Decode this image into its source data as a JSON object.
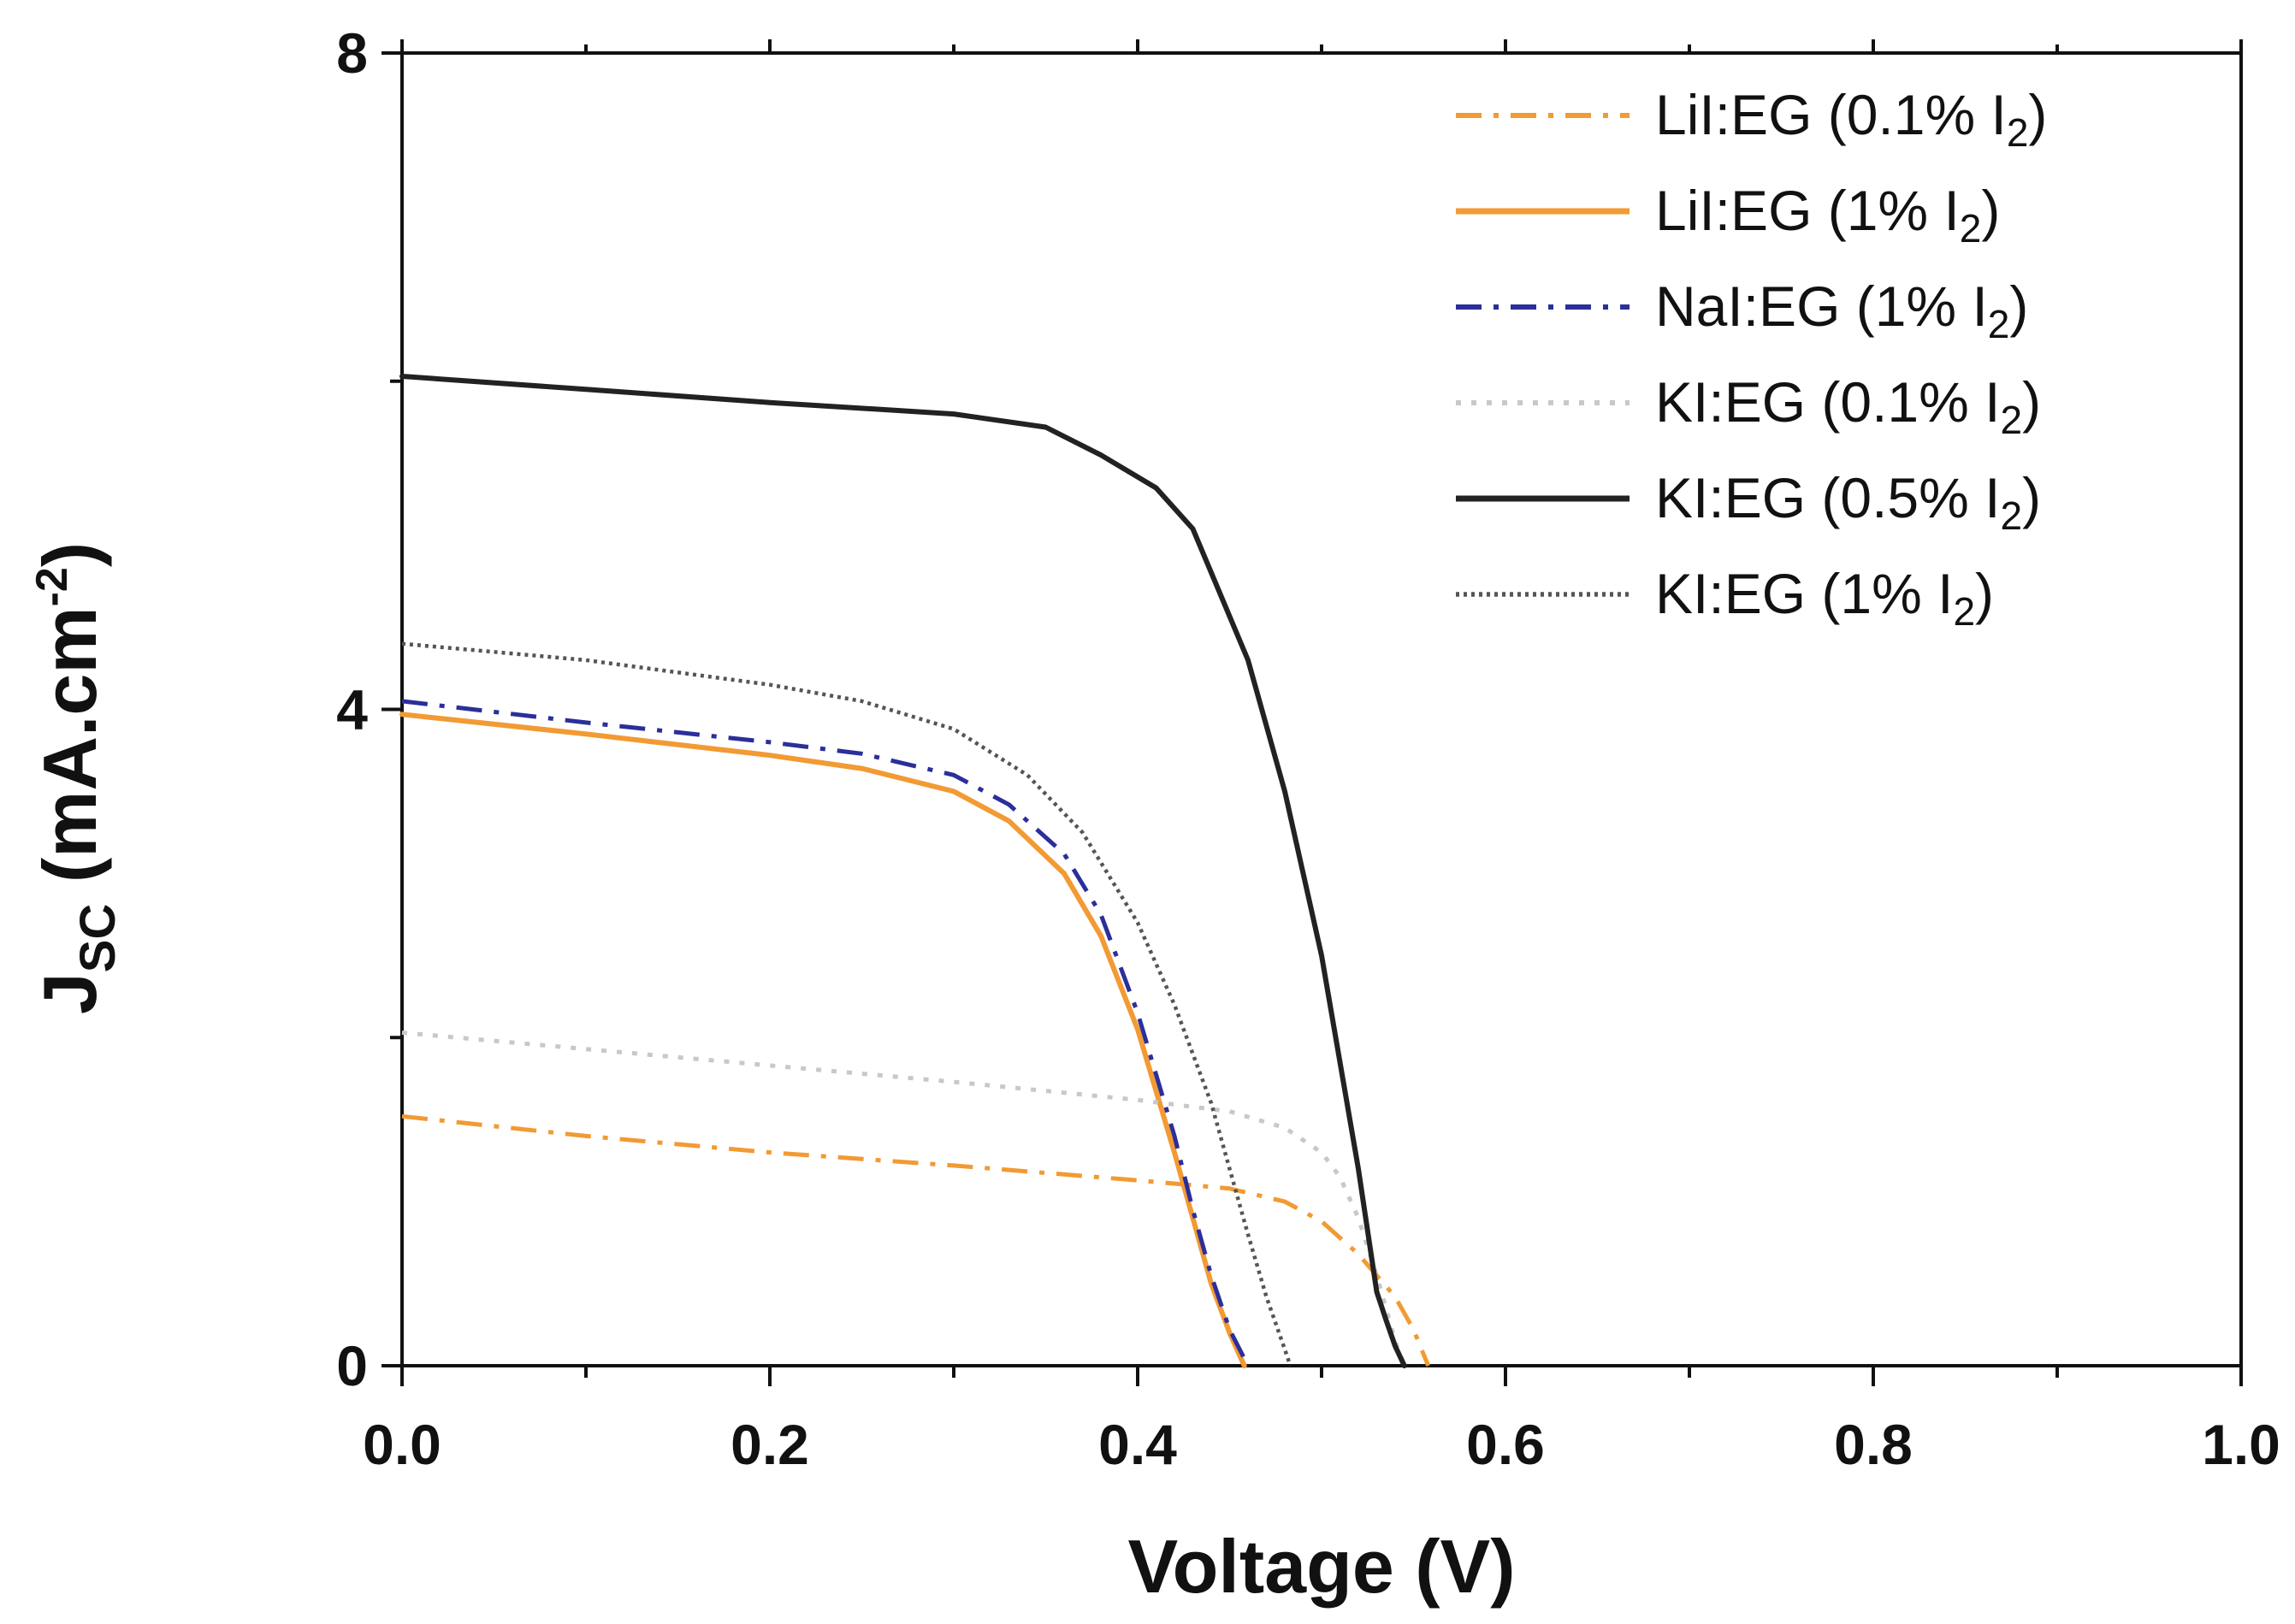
{
  "chart_data": {
    "type": "line",
    "title": "",
    "xlabel": "Voltage (V)",
    "ylabel": {
      "main": "J",
      "sub": "SC",
      "unit_pre": " (mA.cm",
      "unit_sup": "-2",
      "unit_post": ")"
    },
    "xlim": [
      0.0,
      1.0
    ],
    "ylim": [
      0,
      8
    ],
    "x_major_ticks": [
      0.0,
      0.2,
      0.4,
      0.6,
      0.8,
      1.0
    ],
    "x_tick_labels": [
      "0.0",
      "0.2",
      "0.4",
      "0.6",
      "0.8",
      "1.0"
    ],
    "x_minor_ticks": [
      0.1,
      0.3,
      0.5,
      0.7,
      0.9
    ],
    "y_major_ticks": [
      0,
      4,
      8
    ],
    "y_tick_labels": [
      "0",
      "4",
      "8"
    ],
    "y_minor_ticks": [
      2,
      6
    ],
    "grid": false,
    "legend_position": "top-right",
    "series": [
      {
        "name": "LiI:EG (0.1% I2)",
        "label_main": "LiI:EG (0.1% I",
        "label_sub": "2",
        "label_end": ")",
        "color": "#f29a33",
        "style": "dashdot",
        "x": [
          0.0,
          0.1,
          0.2,
          0.3,
          0.4,
          0.45,
          0.48,
          0.5,
          0.52,
          0.53,
          0.54,
          0.55,
          0.558
        ],
        "y": [
          1.52,
          1.4,
          1.3,
          1.22,
          1.13,
          1.08,
          1.0,
          0.88,
          0.68,
          0.55,
          0.42,
          0.22,
          0.0
        ]
      },
      {
        "name": "LiI:EG (1% I2)",
        "label_main": "LiI:EG (1% I",
        "label_sub": "2",
        "label_end": ")",
        "color": "#f29a33",
        "style": "solid",
        "x": [
          0.0,
          0.1,
          0.2,
          0.25,
          0.3,
          0.33,
          0.36,
          0.38,
          0.4,
          0.42,
          0.43,
          0.44,
          0.45,
          0.458
        ],
        "y": [
          3.97,
          3.85,
          3.72,
          3.64,
          3.5,
          3.32,
          3.0,
          2.62,
          2.05,
          1.3,
          0.9,
          0.5,
          0.2,
          0.0
        ]
      },
      {
        "name": "NaI:EG (1% I2)",
        "label_main": "NaI:EG (1% I",
        "label_sub": "2",
        "label_end": ")",
        "color": "#2b2f9a",
        "style": "dashdot",
        "x": [
          0.0,
          0.1,
          0.2,
          0.25,
          0.3,
          0.33,
          0.36,
          0.38,
          0.4,
          0.42,
          0.43,
          0.44,
          0.45,
          0.46
        ],
        "y": [
          4.05,
          3.92,
          3.8,
          3.73,
          3.6,
          3.42,
          3.12,
          2.75,
          2.15,
          1.4,
          0.95,
          0.55,
          0.22,
          0.0
        ]
      },
      {
        "name": "KI:EG (0.1% I2)",
        "label_main": "KI:EG (0.1% I",
        "label_sub": "2",
        "label_end": ")",
        "color": "#c8c8c8",
        "style": "dotted",
        "x": [
          0.0,
          0.1,
          0.2,
          0.3,
          0.4,
          0.45,
          0.48,
          0.5,
          0.51,
          0.52,
          0.53,
          0.535,
          0.54,
          0.545
        ],
        "y": [
          2.03,
          1.93,
          1.83,
          1.73,
          1.62,
          1.55,
          1.45,
          1.3,
          1.15,
          0.9,
          0.55,
          0.35,
          0.15,
          0.0
        ]
      },
      {
        "name": "KI:EG (0.5% I2)",
        "label_main": "KI:EG (0.5% I",
        "label_sub": "2",
        "label_end": ")",
        "color": "#222222",
        "style": "solid",
        "x": [
          0.0,
          0.1,
          0.2,
          0.3,
          0.35,
          0.38,
          0.41,
          0.43,
          0.46,
          0.48,
          0.5,
          0.51,
          0.52,
          0.53,
          0.535,
          0.54,
          0.545
        ],
        "y": [
          6.03,
          5.95,
          5.87,
          5.8,
          5.72,
          5.55,
          5.35,
          5.1,
          4.3,
          3.5,
          2.5,
          1.85,
          1.2,
          0.45,
          0.28,
          0.12,
          0.0
        ]
      },
      {
        "name": "KI:EG (1% I2)",
        "label_main": "KI:EG (1% I",
        "label_sub": "2",
        "label_end": ")",
        "color": "#555555",
        "style": "dotted_fine",
        "x": [
          0.0,
          0.1,
          0.2,
          0.25,
          0.3,
          0.34,
          0.37,
          0.4,
          0.42,
          0.44,
          0.45,
          0.46,
          0.47,
          0.48,
          0.483
        ],
        "y": [
          4.4,
          4.3,
          4.15,
          4.05,
          3.88,
          3.6,
          3.25,
          2.7,
          2.2,
          1.6,
          1.2,
          0.8,
          0.42,
          0.1,
          0.0
        ]
      }
    ]
  }
}
